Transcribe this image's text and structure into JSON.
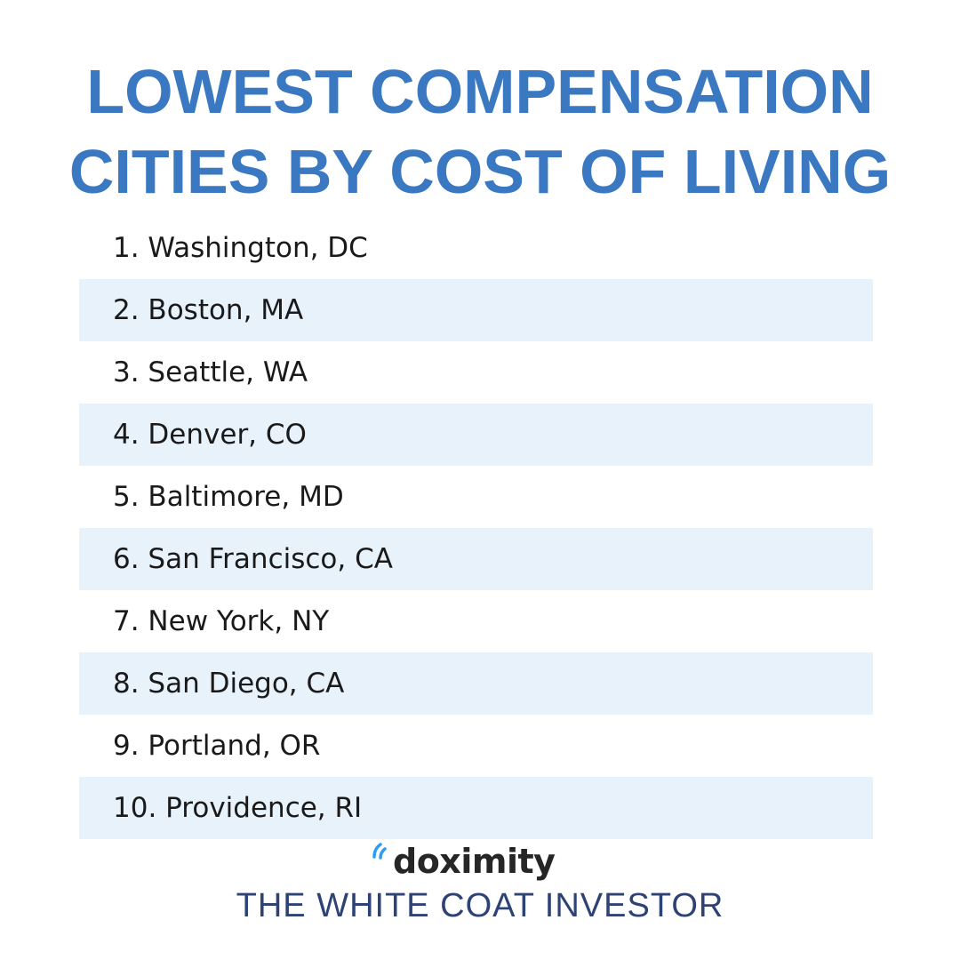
{
  "header": {
    "title_line_1": "LOWEST COMPENSATION",
    "title_line_2": "CITIES BY COST OF LIVING"
  },
  "cities": [
    "1. Washington, DC",
    "2. Boston, MA",
    "3. Seattle, WA",
    "4. Denver, CO",
    "5. Baltimore, MD",
    "6. San Francisco, CA",
    "7. New York, NY",
    "8. San Diego, CA",
    "9. Portland, OR",
    "10. Providence, RI"
  ],
  "logo": {
    "text": "doximity",
    "icon": "doximity-signal-icon"
  },
  "footer": {
    "brand": "THE WHITE COAT INVESTOR"
  },
  "colors": {
    "title": "#3a78c2",
    "stripe": "#e8f2fb",
    "footer": "#2e4375",
    "logo_accent": "#2a9df4"
  }
}
